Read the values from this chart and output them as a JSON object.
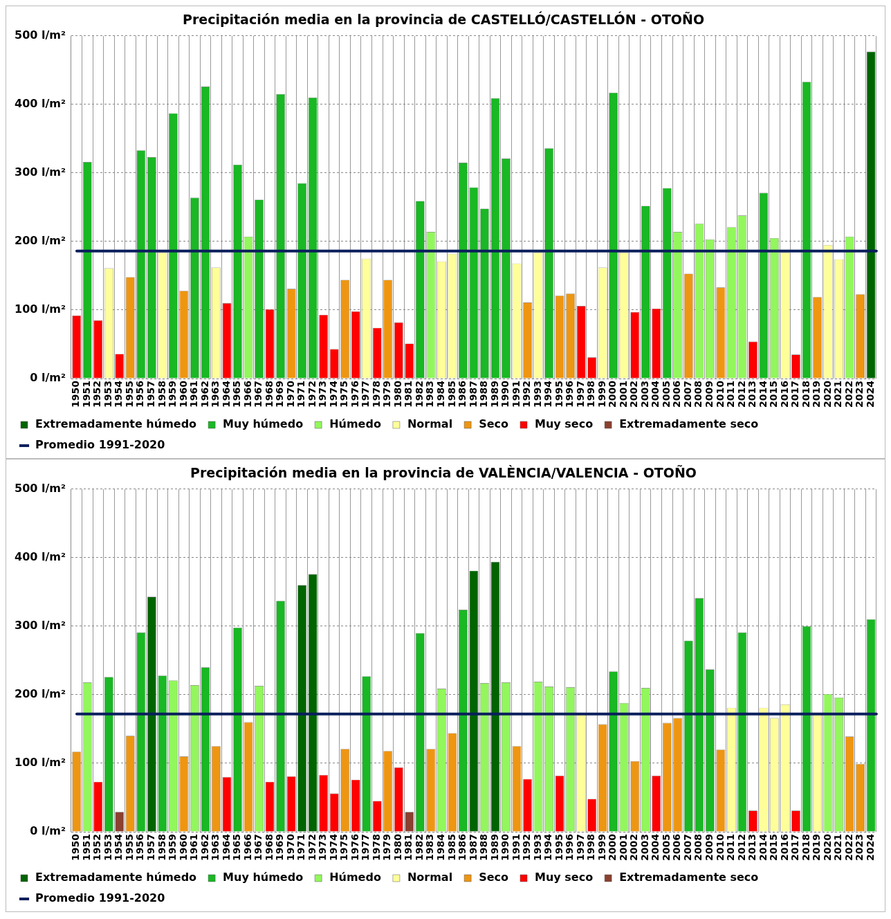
{
  "chart_data": [
    {
      "type": "bar",
      "title": "Precipitación media en la provincia de CASTELLÓ/CASTELLÓN - OTOÑO",
      "stacked": true,
      "grid": true,
      "legend": "bottom",
      "ylim": [
        0,
        500
      ],
      "yticks": [
        {
          "value": 0,
          "label": "0 l/m²"
        },
        {
          "value": 100,
          "label": "100 l/m²"
        },
        {
          "value": 200,
          "label": "200 l/m²"
        },
        {
          "value": 300,
          "label": "300 l/m²"
        },
        {
          "value": 400,
          "label": "400 l/m²"
        },
        {
          "value": 500,
          "label": "500 l/m²"
        }
      ],
      "categories": [
        "1950",
        "1951",
        "1952",
        "1953",
        "1954",
        "1955",
        "1956",
        "1957",
        "1958",
        "1959",
        "1960",
        "1961",
        "1962",
        "1963",
        "1964",
        "1965",
        "1966",
        "1967",
        "1968",
        "1969",
        "1970",
        "1971",
        "1972",
        "1973",
        "1974",
        "1975",
        "1976",
        "1977",
        "1978",
        "1979",
        "1980",
        "1981",
        "1982",
        "1983",
        "1984",
        "1985",
        "1986",
        "1987",
        "1988",
        "1989",
        "1990",
        "1991",
        "1992",
        "1993",
        "1994",
        "1995",
        "1996",
        "1997",
        "1998",
        "1999",
        "2000",
        "2001",
        "2002",
        "2003",
        "2004",
        "2005",
        "2006",
        "2007",
        "2008",
        "2009",
        "2010",
        "2011",
        "2012",
        "2013",
        "2014",
        "2015",
        "2016",
        "2017",
        "2018",
        "2019",
        "2020",
        "2021",
        "2022",
        "2023",
        "2024"
      ],
      "ref_lines": [
        {
          "axis": "y",
          "value": 186,
          "label": "Promedio 1991-2020",
          "color": "#0b1f5c"
        }
      ],
      "series": [
        {
          "name": "Extremadamente húmedo",
          "color": "#006400",
          "values": [
            null,
            null,
            null,
            null,
            null,
            null,
            null,
            null,
            null,
            null,
            null,
            null,
            null,
            null,
            null,
            null,
            null,
            null,
            null,
            null,
            null,
            null,
            null,
            null,
            null,
            null,
            null,
            null,
            null,
            null,
            null,
            null,
            null,
            null,
            null,
            null,
            null,
            null,
            null,
            null,
            null,
            null,
            null,
            null,
            null,
            null,
            null,
            null,
            null,
            null,
            null,
            null,
            null,
            null,
            null,
            null,
            null,
            null,
            null,
            null,
            null,
            null,
            null,
            null,
            null,
            null,
            null,
            null,
            null,
            null,
            null,
            null,
            null,
            null,
            477
          ]
        },
        {
          "name": "Muy húmedo",
          "color": "#19b824",
          "values": [
            null,
            316,
            null,
            null,
            null,
            null,
            333,
            323,
            null,
            387,
            null,
            264,
            426,
            null,
            null,
            312,
            null,
            261,
            null,
            415,
            null,
            285,
            410,
            null,
            null,
            null,
            null,
            null,
            null,
            null,
            null,
            null,
            259,
            null,
            null,
            null,
            315,
            279,
            248,
            409,
            321,
            null,
            null,
            null,
            336,
            null,
            null,
            null,
            null,
            null,
            417,
            null,
            null,
            252,
            null,
            278,
            null,
            null,
            null,
            null,
            null,
            null,
            null,
            null,
            271,
            null,
            null,
            null,
            433,
            null,
            null,
            null,
            null,
            null,
            null
          ]
        },
        {
          "name": "Húmedo",
          "color": "#92f75c",
          "values": [
            null,
            null,
            null,
            null,
            null,
            null,
            null,
            null,
            null,
            null,
            null,
            null,
            null,
            null,
            null,
            null,
            207,
            null,
            null,
            null,
            null,
            null,
            null,
            null,
            null,
            null,
            null,
            null,
            null,
            null,
            null,
            null,
            null,
            214,
            null,
            null,
            null,
            null,
            null,
            null,
            null,
            null,
            null,
            null,
            null,
            null,
            null,
            null,
            null,
            null,
            null,
            null,
            null,
            null,
            null,
            null,
            214,
            null,
            226,
            203,
            null,
            221,
            238,
            null,
            null,
            205,
            null,
            null,
            null,
            null,
            null,
            null,
            207,
            null,
            null
          ]
        },
        {
          "name": "Normal",
          "color": "#ffff99",
          "values": [
            null,
            null,
            null,
            161,
            null,
            null,
            null,
            null,
            184,
            null,
            null,
            null,
            null,
            162,
            null,
            null,
            null,
            null,
            null,
            null,
            null,
            null,
            null,
            null,
            null,
            null,
            null,
            175,
            null,
            null,
            null,
            null,
            null,
            null,
            171,
            182,
            null,
            null,
            null,
            null,
            null,
            168,
            null,
            184,
            null,
            null,
            null,
            null,
            null,
            162,
            null,
            184,
            null,
            null,
            null,
            null,
            null,
            null,
            null,
            null,
            null,
            null,
            null,
            null,
            null,
            null,
            184,
            null,
            null,
            null,
            195,
            174,
            null,
            null,
            null
          ]
        },
        {
          "name": "Seco",
          "color": "#ee9612",
          "values": [
            null,
            null,
            null,
            null,
            null,
            148,
            null,
            null,
            null,
            null,
            128,
            null,
            null,
            null,
            null,
            null,
            null,
            null,
            null,
            null,
            131,
            null,
            null,
            null,
            null,
            144,
            null,
            null,
            null,
            144,
            null,
            null,
            null,
            null,
            null,
            null,
            null,
            null,
            null,
            null,
            null,
            null,
            111,
            null,
            null,
            121,
            124,
            null,
            null,
            null,
            null,
            null,
            null,
            null,
            null,
            null,
            null,
            153,
            null,
            null,
            133,
            null,
            null,
            null,
            null,
            null,
            null,
            null,
            null,
            119,
            null,
            null,
            null,
            123,
            null
          ]
        },
        {
          "name": "Muy seco",
          "color": "#ff0000",
          "values": [
            92,
            null,
            85,
            null,
            36,
            null,
            null,
            null,
            null,
            null,
            null,
            null,
            null,
            null,
            110,
            null,
            null,
            null,
            101,
            null,
            null,
            null,
            null,
            93,
            43,
            null,
            98,
            null,
            74,
            null,
            82,
            51,
            null,
            null,
            null,
            null,
            null,
            null,
            null,
            null,
            null,
            null,
            null,
            null,
            null,
            null,
            null,
            106,
            31,
            null,
            null,
            null,
            97,
            null,
            102,
            null,
            null,
            null,
            null,
            null,
            null,
            null,
            null,
            54,
            null,
            null,
            null,
            35,
            null,
            null,
            null,
            null,
            null,
            null,
            null
          ]
        },
        {
          "name": "Extremadamente seco",
          "color": "#8b4030",
          "values": [
            null,
            null,
            null,
            null,
            null,
            null,
            null,
            null,
            null,
            null,
            null,
            null,
            null,
            null,
            null,
            null,
            null,
            null,
            null,
            null,
            null,
            null,
            null,
            null,
            null,
            null,
            null,
            null,
            null,
            null,
            null,
            null,
            null,
            null,
            null,
            null,
            null,
            null,
            null,
            null,
            null,
            null,
            null,
            null,
            null,
            null,
            null,
            null,
            null,
            null,
            null,
            null,
            null,
            null,
            null,
            null,
            null,
            null,
            null,
            null,
            null,
            null,
            null,
            null,
            null,
            null,
            null,
            null,
            null,
            null,
            null,
            null,
            null,
            null,
            null
          ]
        }
      ]
    },
    {
      "type": "bar",
      "title": "Precipitación media en la provincia de VALÈNCIA/VALENCIA - OTOÑO",
      "stacked": true,
      "grid": true,
      "legend": "bottom",
      "ylim": [
        0,
        500
      ],
      "yticks": [
        {
          "value": 0,
          "label": "0 l/m²"
        },
        {
          "value": 100,
          "label": "100 l/m²"
        },
        {
          "value": 200,
          "label": "200 l/m²"
        },
        {
          "value": 300,
          "label": "300 l/m²"
        },
        {
          "value": 400,
          "label": "400 l/m²"
        },
        {
          "value": 500,
          "label": "500 l/m²"
        }
      ],
      "categories": [
        "1950",
        "1951",
        "1952",
        "1953",
        "1954",
        "1955",
        "1956",
        "1957",
        "1958",
        "1959",
        "1960",
        "1961",
        "1962",
        "1963",
        "1964",
        "1965",
        "1966",
        "1967",
        "1968",
        "1969",
        "1970",
        "1971",
        "1972",
        "1973",
        "1974",
        "1975",
        "1976",
        "1977",
        "1978",
        "1979",
        "1980",
        "1981",
        "1982",
        "1983",
        "1984",
        "1985",
        "1986",
        "1987",
        "1988",
        "1989",
        "1990",
        "1991",
        "1992",
        "1993",
        "1994",
        "1995",
        "1996",
        "1997",
        "1998",
        "1999",
        "2000",
        "2001",
        "2002",
        "2003",
        "2004",
        "2005",
        "2006",
        "2007",
        "2008",
        "2009",
        "2010",
        "2011",
        "2012",
        "2013",
        "2014",
        "2015",
        "2016",
        "2017",
        "2018",
        "2019",
        "2020",
        "2021",
        "2022",
        "2023",
        "2024"
      ],
      "ref_lines": [
        {
          "axis": "y",
          "value": 172,
          "label": "Promedio 1991-2020",
          "color": "#0b1f5c"
        }
      ],
      "series": [
        {
          "name": "Extremadamente húmedo",
          "color": "#006400",
          "values": [
            null,
            null,
            null,
            null,
            null,
            null,
            null,
            343,
            null,
            null,
            null,
            null,
            null,
            null,
            null,
            null,
            null,
            null,
            null,
            null,
            null,
            360,
            376,
            null,
            null,
            null,
            null,
            null,
            null,
            null,
            null,
            null,
            null,
            null,
            null,
            null,
            null,
            381,
            null,
            394,
            null,
            null,
            null,
            null,
            null,
            null,
            null,
            null,
            null,
            null,
            null,
            null,
            null,
            null,
            null,
            null,
            null,
            null,
            null,
            null,
            null,
            null,
            null,
            null,
            null,
            null,
            null,
            null,
            null,
            null,
            null,
            null,
            null,
            null,
            null
          ]
        },
        {
          "name": "Muy húmedo",
          "color": "#19b824",
          "values": [
            null,
            null,
            null,
            226,
            null,
            null,
            291,
            null,
            228,
            null,
            null,
            null,
            240,
            null,
            null,
            298,
            null,
            null,
            null,
            337,
            null,
            null,
            null,
            null,
            null,
            null,
            null,
            227,
            null,
            null,
            null,
            null,
            290,
            null,
            null,
            null,
            324,
            null,
            null,
            null,
            null,
            null,
            null,
            null,
            null,
            null,
            null,
            null,
            null,
            null,
            234,
            null,
            null,
            null,
            null,
            null,
            null,
            279,
            341,
            237,
            null,
            null,
            291,
            null,
            null,
            null,
            null,
            null,
            300,
            null,
            null,
            null,
            null,
            null,
            310
          ]
        },
        {
          "name": "Húmedo",
          "color": "#92f75c",
          "values": [
            null,
            218,
            null,
            null,
            null,
            null,
            null,
            null,
            null,
            221,
            null,
            214,
            null,
            null,
            null,
            null,
            null,
            213,
            null,
            null,
            null,
            null,
            null,
            null,
            null,
            null,
            null,
            null,
            null,
            null,
            null,
            null,
            null,
            null,
            209,
            null,
            null,
            null,
            217,
            null,
            218,
            null,
            null,
            219,
            212,
            null,
            211,
            null,
            null,
            null,
            null,
            188,
            null,
            210,
            null,
            null,
            null,
            null,
            null,
            null,
            null,
            null,
            null,
            null,
            null,
            null,
            null,
            null,
            null,
            null,
            201,
            196,
            null,
            null,
            null
          ]
        },
        {
          "name": "Normal",
          "color": "#ffff99",
          "values": [
            null,
            null,
            null,
            null,
            null,
            null,
            null,
            null,
            null,
            null,
            null,
            null,
            null,
            null,
            null,
            null,
            null,
            null,
            null,
            null,
            null,
            null,
            null,
            null,
            null,
            null,
            null,
            null,
            null,
            null,
            null,
            null,
            null,
            null,
            null,
            null,
            null,
            null,
            null,
            null,
            null,
            null,
            null,
            null,
            null,
            null,
            null,
            171,
            null,
            null,
            null,
            null,
            null,
            null,
            null,
            null,
            null,
            null,
            null,
            null,
            null,
            181,
            null,
            null,
            181,
            166,
            186,
            null,
            null,
            171,
            null,
            null,
            null,
            null,
            null
          ]
        },
        {
          "name": "Seco",
          "color": "#ee9612",
          "values": [
            117,
            null,
            null,
            null,
            null,
            140,
            null,
            null,
            null,
            null,
            110,
            null,
            null,
            125,
            null,
            null,
            160,
            null,
            null,
            null,
            null,
            null,
            null,
            null,
            null,
            121,
            null,
            null,
            null,
            118,
            null,
            null,
            null,
            121,
            null,
            144,
            null,
            null,
            null,
            null,
            null,
            125,
            null,
            null,
            null,
            null,
            null,
            null,
            null,
            157,
            null,
            null,
            103,
            null,
            null,
            159,
            166,
            null,
            null,
            null,
            120,
            null,
            null,
            null,
            null,
            null,
            null,
            null,
            null,
            null,
            null,
            null,
            139,
            99,
            null
          ]
        },
        {
          "name": "Muy seco",
          "color": "#ff0000",
          "values": [
            null,
            null,
            73,
            null,
            null,
            null,
            null,
            null,
            null,
            null,
            null,
            null,
            null,
            null,
            80,
            null,
            null,
            null,
            73,
            null,
            81,
            null,
            null,
            83,
            56,
            null,
            76,
            null,
            45,
            null,
            94,
            null,
            null,
            null,
            null,
            null,
            null,
            null,
            null,
            null,
            null,
            null,
            77,
            null,
            null,
            82,
            null,
            null,
            48,
            null,
            null,
            null,
            null,
            null,
            82,
            null,
            null,
            null,
            null,
            null,
            null,
            null,
            null,
            31,
            null,
            null,
            null,
            31,
            null,
            null,
            null,
            null,
            null,
            null,
            null
          ]
        },
        {
          "name": "Extremadamente seco",
          "color": "#8b4030",
          "values": [
            null,
            null,
            null,
            null,
            29,
            null,
            null,
            null,
            null,
            null,
            null,
            null,
            null,
            null,
            null,
            null,
            null,
            null,
            null,
            null,
            null,
            null,
            null,
            null,
            null,
            null,
            null,
            null,
            null,
            null,
            null,
            29,
            null,
            null,
            null,
            null,
            null,
            null,
            null,
            null,
            null,
            null,
            null,
            null,
            null,
            null,
            null,
            null,
            null,
            null,
            null,
            null,
            null,
            null,
            null,
            null,
            null,
            null,
            null,
            null,
            null,
            null,
            null,
            null,
            null,
            null,
            null,
            null,
            null,
            null,
            null,
            null,
            null,
            null,
            null
          ]
        }
      ]
    }
  ]
}
